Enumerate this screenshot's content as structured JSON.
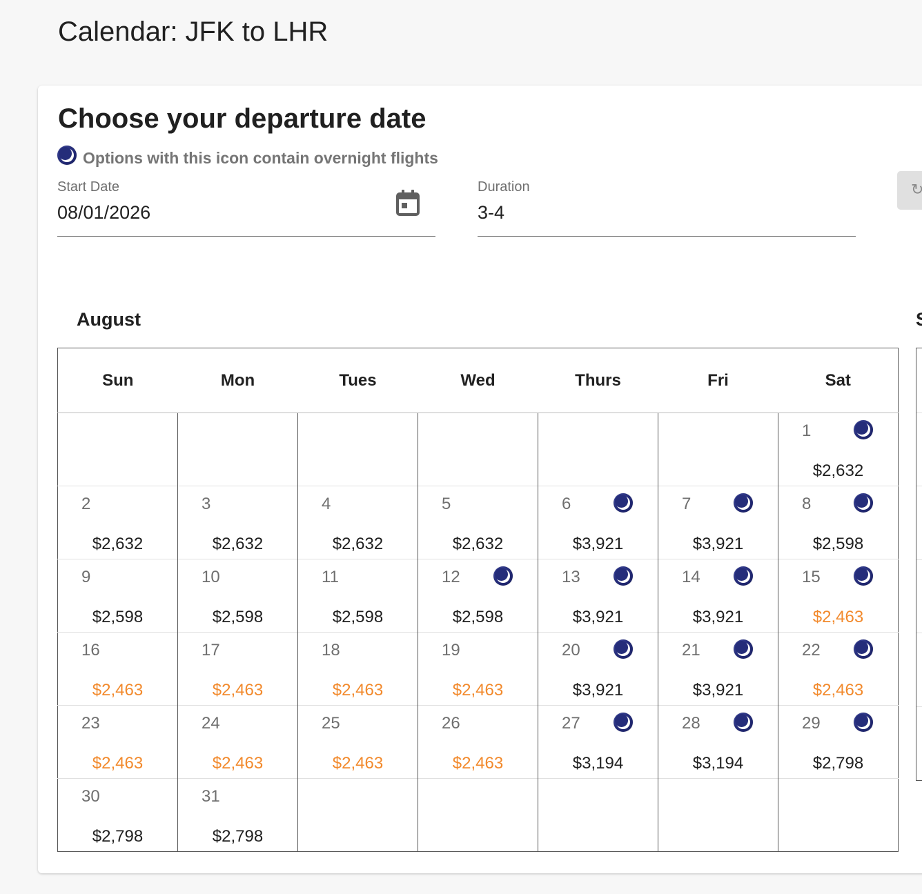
{
  "page": {
    "title": "Calendar: JFK to LHR"
  },
  "card": {
    "title": "Choose your departure date",
    "legend_text": "Options with this icon contain overnight flights",
    "legend_icon": "moon-icon"
  },
  "form": {
    "start_date": {
      "label": "Start Date",
      "value": "08/01/2026",
      "icon": "calendar-icon"
    },
    "duration": {
      "label": "Duration",
      "value": "3-4"
    },
    "reset_icon": "refresh-icon"
  },
  "calendar": {
    "month": "August",
    "next_month_initial": "S",
    "weekdays": [
      "Sun",
      "Mon",
      "Tues",
      "Wed",
      "Thurs",
      "Fri",
      "Sat"
    ],
    "colors": {
      "price": "#212121",
      "low_price": "#f28a2d",
      "overnight_icon": "#252d7a"
    },
    "weeks": [
      [
        null,
        null,
        null,
        null,
        null,
        null,
        {
          "day": "1",
          "price": "$2,632",
          "overnight": true,
          "low": false
        }
      ],
      [
        {
          "day": "2",
          "price": "$2,632",
          "overnight": false,
          "low": false
        },
        {
          "day": "3",
          "price": "$2,632",
          "overnight": false,
          "low": false
        },
        {
          "day": "4",
          "price": "$2,632",
          "overnight": false,
          "low": false
        },
        {
          "day": "5",
          "price": "$2,632",
          "overnight": false,
          "low": false
        },
        {
          "day": "6",
          "price": "$3,921",
          "overnight": true,
          "low": false
        },
        {
          "day": "7",
          "price": "$3,921",
          "overnight": true,
          "low": false
        },
        {
          "day": "8",
          "price": "$2,598",
          "overnight": true,
          "low": false
        }
      ],
      [
        {
          "day": "9",
          "price": "$2,598",
          "overnight": false,
          "low": false
        },
        {
          "day": "10",
          "price": "$2,598",
          "overnight": false,
          "low": false
        },
        {
          "day": "11",
          "price": "$2,598",
          "overnight": false,
          "low": false
        },
        {
          "day": "12",
          "price": "$2,598",
          "overnight": true,
          "low": false
        },
        {
          "day": "13",
          "price": "$3,921",
          "overnight": true,
          "low": false
        },
        {
          "day": "14",
          "price": "$3,921",
          "overnight": true,
          "low": false
        },
        {
          "day": "15",
          "price": "$2,463",
          "overnight": true,
          "low": true
        }
      ],
      [
        {
          "day": "16",
          "price": "$2,463",
          "overnight": false,
          "low": true
        },
        {
          "day": "17",
          "price": "$2,463",
          "overnight": false,
          "low": true
        },
        {
          "day": "18",
          "price": "$2,463",
          "overnight": false,
          "low": true
        },
        {
          "day": "19",
          "price": "$2,463",
          "overnight": false,
          "low": true
        },
        {
          "day": "20",
          "price": "$3,921",
          "overnight": true,
          "low": false
        },
        {
          "day": "21",
          "price": "$3,921",
          "overnight": true,
          "low": false
        },
        {
          "day": "22",
          "price": "$2,463",
          "overnight": true,
          "low": true
        }
      ],
      [
        {
          "day": "23",
          "price": "$2,463",
          "overnight": false,
          "low": true
        },
        {
          "day": "24",
          "price": "$2,463",
          "overnight": false,
          "low": true
        },
        {
          "day": "25",
          "price": "$2,463",
          "overnight": false,
          "low": true
        },
        {
          "day": "26",
          "price": "$2,463",
          "overnight": false,
          "low": true
        },
        {
          "day": "27",
          "price": "$3,194",
          "overnight": true,
          "low": false
        },
        {
          "day": "28",
          "price": "$3,194",
          "overnight": true,
          "low": false
        },
        {
          "day": "29",
          "price": "$2,798",
          "overnight": true,
          "low": false
        }
      ],
      [
        {
          "day": "30",
          "price": "$2,798",
          "overnight": false,
          "low": false
        },
        {
          "day": "31",
          "price": "$2,798",
          "overnight": false,
          "low": false
        },
        null,
        null,
        null,
        null,
        null
      ]
    ]
  }
}
